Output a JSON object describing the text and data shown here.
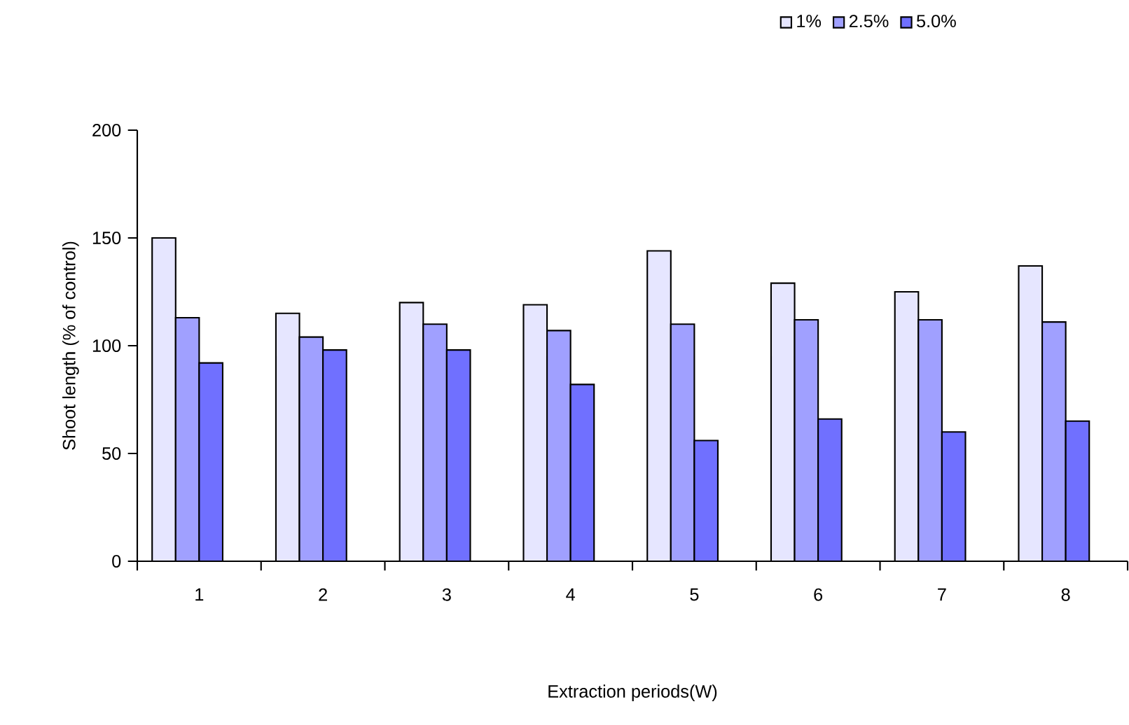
{
  "chart_data": {
    "type": "bar",
    "xlabel": "Extraction periods(W)",
    "ylabel": "Shoot length (% of control)",
    "categories": [
      "1",
      "2",
      "3",
      "4",
      "5",
      "6",
      "7",
      "8"
    ],
    "series": [
      {
        "name": "1%",
        "color": "#e6e6ff",
        "values": [
          150,
          115,
          120,
          119,
          144,
          129,
          125,
          137
        ]
      },
      {
        "name": "2.5%",
        "color": "#a0a0ff",
        "values": [
          113,
          104,
          110,
          107,
          110,
          112,
          112,
          111
        ]
      },
      {
        "name": "5.0%",
        "color": "#7070ff",
        "values": [
          92,
          98,
          98,
          82,
          56,
          66,
          60,
          65
        ]
      }
    ],
    "ylim": [
      0,
      200
    ],
    "yticks": [
      0,
      50,
      100,
      150,
      200
    ],
    "legend": "top right"
  }
}
